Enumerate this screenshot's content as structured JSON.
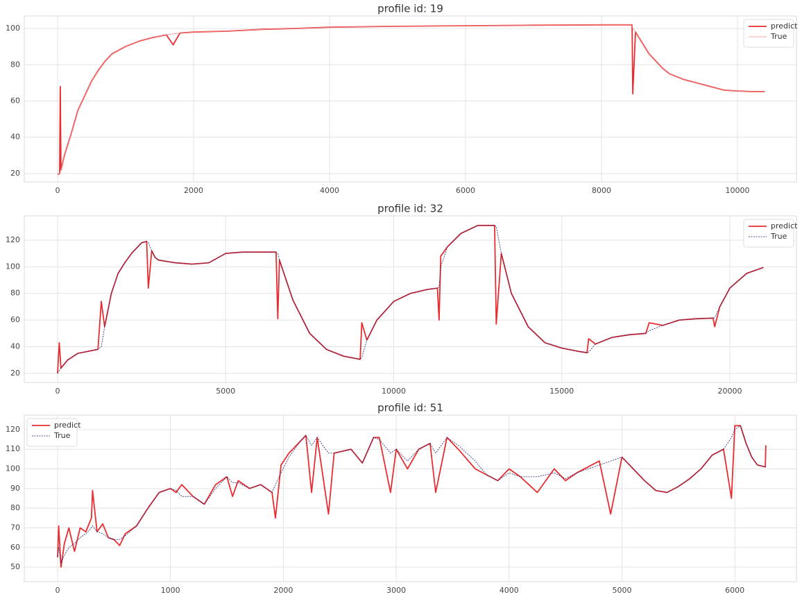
{
  "chart_data": [
    {
      "type": "line",
      "title": "profile id: 19",
      "legend": "upper right",
      "xlim": [
        -490,
        10867
      ],
      "ylim": [
        15.4,
        106.9
      ],
      "xticks": [
        0,
        2000,
        4000,
        6000,
        8000,
        10000
      ],
      "yticks": [
        20,
        40,
        60,
        80,
        100
      ],
      "grid": true,
      "x": [
        0,
        30,
        40,
        50,
        100,
        200,
        300,
        400,
        500,
        600,
        700,
        800,
        1000,
        1200,
        1400,
        1600,
        1700,
        1800,
        2000,
        2500,
        3000,
        3500,
        4000,
        5000,
        6000,
        7000,
        8000,
        8400,
        8450,
        8460,
        8500,
        8600,
        8700,
        8800,
        8900,
        9000,
        9200,
        9400,
        9600,
        9800,
        10000,
        10200,
        10400
      ],
      "series": [
        {
          "name": "predict",
          "color": "#e82c2f",
          "style": "solid",
          "values": [
            19.5,
            20,
            68,
            22,
            30,
            42,
            55,
            63,
            71,
            77,
            82,
            86,
            90,
            93,
            95,
            96.5,
            91,
            97.5,
            98,
            98.5,
            99.5,
            100,
            100.7,
            101.2,
            101.5,
            101.8,
            102,
            102,
            102,
            64,
            98,
            92,
            86,
            82,
            78,
            75,
            72,
            70,
            68,
            66,
            65.5,
            65.2,
            65.2
          ]
        },
        {
          "name": "True",
          "color": "#f08a8a",
          "style": "solid",
          "values": [
            19.5,
            20,
            21,
            22,
            30,
            42,
            55,
            63,
            71,
            77,
            82,
            86,
            90,
            93,
            95,
            96.5,
            97,
            97.5,
            98,
            98.5,
            99.5,
            100,
            100.7,
            101.2,
            101.5,
            101.8,
            102,
            102,
            102,
            100,
            98,
            92,
            86,
            82,
            78,
            75,
            72,
            70,
            68,
            66,
            65.5,
            65.2,
            65.2
          ]
        }
      ]
    },
    {
      "type": "line",
      "title": "profile id: 32",
      "legend": "upper right",
      "xlim": [
        -991,
        21981
      ],
      "ylim": [
        13.2,
        138.2
      ],
      "xticks": [
        0,
        5000,
        10000,
        15000,
        20000
      ],
      "yticks": [
        20,
        40,
        60,
        80,
        100,
        120
      ],
      "grid": true,
      "x": [
        0,
        50,
        100,
        300,
        600,
        1000,
        1200,
        1300,
        1400,
        1600,
        1800,
        2000,
        2200,
        2500,
        2650,
        2700,
        2800,
        2900,
        3000,
        3500,
        4000,
        4500,
        5000,
        5500,
        6000,
        6500,
        6550,
        6600,
        7000,
        7500,
        8000,
        8500,
        8900,
        9000,
        9050,
        9200,
        9500,
        10000,
        10500,
        11000,
        11300,
        11350,
        11400,
        11600,
        12000,
        12500,
        13000,
        13050,
        13200,
        13500,
        14000,
        14500,
        15000,
        15500,
        15750,
        15800,
        16000,
        16500,
        17000,
        17500,
        17600,
        18000,
        18500,
        19000,
        19500,
        19550,
        19700,
        20000,
        20500,
        21000
      ],
      "series": [
        {
          "name": "predict",
          "color": "#e82c2f",
          "style": "solid",
          "values": [
            20,
            43,
            24,
            30,
            35,
            37,
            38,
            74,
            55,
            80,
            95,
            103,
            110,
            118,
            119,
            84,
            112,
            107,
            105,
            103,
            102,
            103,
            110,
            111,
            111,
            111,
            61,
            105,
            75,
            50,
            38,
            33,
            31,
            30.5,
            58,
            45,
            60,
            74,
            80,
            83,
            84,
            60,
            108,
            115,
            125,
            131,
            131,
            57,
            110,
            80,
            55,
            43,
            39,
            36.5,
            35.5,
            46,
            42,
            47,
            49,
            50,
            58,
            56,
            60,
            61,
            61.5,
            55,
            70,
            84,
            95,
            99.5
          ]
        },
        {
          "name": "True",
          "color": "#1a1f6e",
          "style": "dotted",
          "values": [
            20,
            22,
            24,
            30,
            35,
            37,
            38,
            40,
            55,
            80,
            95,
            103,
            110,
            118,
            119,
            118,
            112,
            107,
            105,
            103,
            102,
            103,
            110,
            111,
            111,
            111,
            110,
            105,
            75,
            50,
            38,
            33,
            31,
            30.5,
            32,
            45,
            60,
            74,
            80,
            83,
            84,
            85,
            100,
            115,
            125,
            131,
            131,
            130,
            110,
            80,
            55,
            43,
            39,
            36.5,
            35.5,
            36,
            42,
            47,
            49,
            50,
            52,
            56,
            60,
            61,
            61.5,
            62,
            70,
            84,
            95,
            99.5
          ]
        }
      ]
    },
    {
      "type": "line",
      "title": "profile id: 51",
      "legend": "upper left",
      "xlim": [
        -295,
        6546
      ],
      "ylim": [
        42.6,
        127.4
      ],
      "xticks": [
        0,
        1000,
        2000,
        3000,
        4000,
        5000,
        6000
      ],
      "yticks": [
        50,
        60,
        70,
        80,
        90,
        100,
        110,
        120
      ],
      "grid": true,
      "x": [
        0,
        10,
        30,
        60,
        100,
        150,
        200,
        250,
        300,
        310,
        350,
        400,
        450,
        500,
        550,
        600,
        700,
        800,
        900,
        1000,
        1050,
        1100,
        1200,
        1300,
        1400,
        1500,
        1550,
        1600,
        1700,
        1800,
        1900,
        1930,
        1980,
        2050,
        2150,
        2200,
        2250,
        2300,
        2400,
        2450,
        2600,
        2700,
        2800,
        2850,
        2950,
        3000,
        3100,
        3200,
        3300,
        3350,
        3450,
        3550,
        3700,
        3800,
        3900,
        4000,
        4100,
        4250,
        4400,
        4500,
        4600,
        4800,
        4900,
        5000,
        5100,
        5200,
        5300,
        5400,
        5500,
        5600,
        5700,
        5800,
        5900,
        5970,
        6000,
        6050,
        6100,
        6150,
        6200,
        6270,
        6275
      ],
      "series": [
        {
          "name": "predict",
          "color": "#e82c2f",
          "style": "solid",
          "values": [
            55,
            71,
            50,
            62,
            70,
            58,
            70,
            68,
            75,
            89,
            68,
            72,
            65,
            64,
            61,
            67,
            71,
            80,
            88,
            90,
            88,
            92,
            86,
            82,
            92,
            96,
            86,
            94,
            90,
            92,
            88,
            75,
            102,
            108,
            114,
            117,
            88,
            116,
            77,
            108,
            110,
            103,
            116,
            116,
            88,
            110,
            100,
            110,
            113,
            88,
            116,
            110,
            100,
            97,
            94,
            100,
            96,
            88,
            100,
            94,
            98,
            104,
            77,
            106,
            100,
            94,
            89,
            88,
            91,
            95,
            100,
            107,
            110,
            85,
            122,
            122,
            113,
            106,
            102,
            101,
            112
          ]
        },
        {
          "name": "True",
          "color": "#1a1f6e",
          "style": "dotted",
          "values": [
            55,
            60,
            52,
            56,
            60,
            62,
            65,
            67,
            70,
            71,
            68,
            67,
            65,
            64,
            64,
            66,
            71,
            80,
            88,
            90,
            89,
            86,
            86,
            82,
            90,
            96,
            93,
            93,
            90,
            92,
            88,
            92,
            98,
            106,
            114,
            117,
            112,
            116,
            108,
            108,
            110,
            103,
            116,
            115,
            108,
            110,
            104,
            110,
            113,
            108,
            116,
            112,
            104,
            97,
            94,
            98,
            96,
            96,
            98,
            95,
            98,
            102,
            104,
            106,
            100,
            94,
            89,
            88,
            91,
            95,
            100,
            107,
            110,
            116,
            120,
            122,
            113,
            106,
            102,
            101,
            101
          ]
        }
      ]
    }
  ]
}
